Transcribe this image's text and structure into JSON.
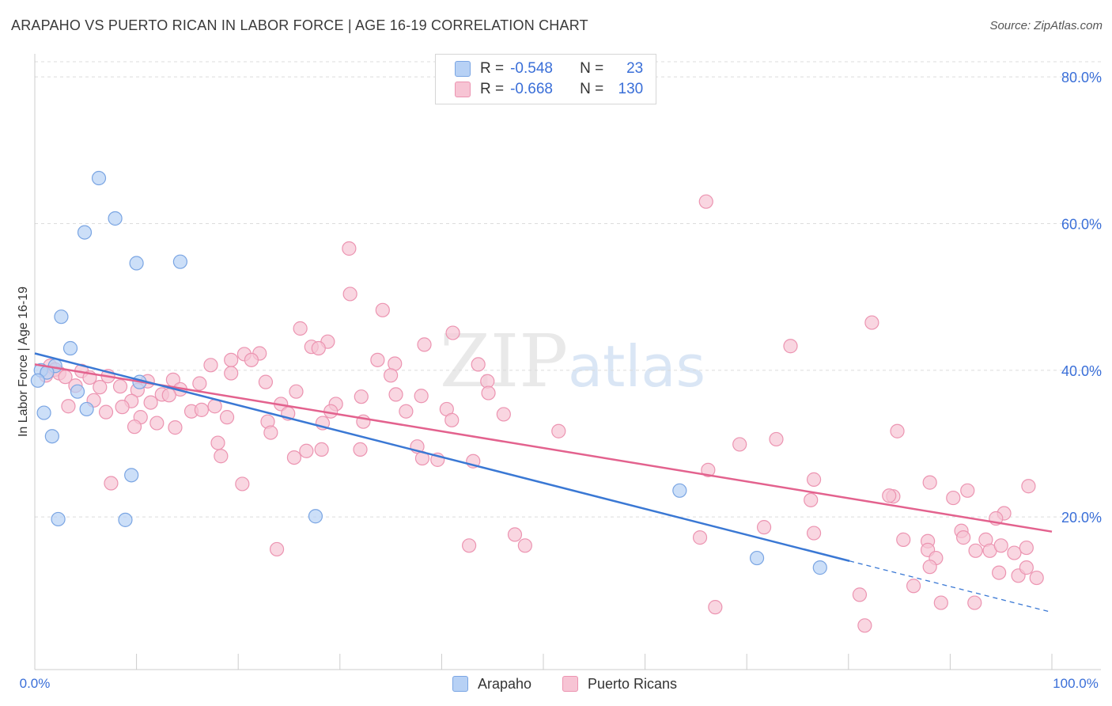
{
  "title": "ARAPAHO VS PUERTO RICAN IN LABOR FORCE | AGE 16-19 CORRELATION CHART",
  "source": "Source: ZipAtlas.com",
  "watermark": {
    "zip": "ZIP",
    "atlas": "atlas"
  },
  "colors": {
    "arapaho_fill": "#b7d1f5",
    "arapaho_stroke": "#7aa5e3",
    "arapaho_line": "#3a78d4",
    "pr_fill": "#f7c4d4",
    "pr_stroke": "#ec94b1",
    "pr_line": "#e3628e",
    "axis_text": "#3a6fd8",
    "grid": "#dcdcdc"
  },
  "legend": {
    "rows": [
      {
        "r_label": "R =",
        "r_value": "-0.548",
        "n_label": "N =",
        "n_value": "23"
      },
      {
        "r_label": "R =",
        "r_value": "-0.668",
        "n_label": "N =",
        "n_value": "130"
      }
    ],
    "bottom": [
      "Arapaho",
      "Puerto Ricans"
    ]
  },
  "chart_data": {
    "type": "scatter",
    "title": "ARAPAHO VS PUERTO RICAN IN LABOR FORCE | AGE 16-19 CORRELATION CHART",
    "xlabel": "",
    "ylabel": "In Labor Force | Age 16-19",
    "xlim": [
      0,
      100
    ],
    "ylim": [
      0,
      80
    ],
    "x_tick_labels": [
      "0.0%",
      "100.0%"
    ],
    "y_ticks": [
      20,
      40,
      60,
      80
    ],
    "y_tick_labels": [
      "20.0%",
      "40.0%",
      "60.0%",
      "80.0%"
    ],
    "series": [
      {
        "name": "Arapaho",
        "r": -0.548,
        "n": 23,
        "points": [
          [
            6.3,
            66.2
          ],
          [
            7.9,
            60.7
          ],
          [
            4.9,
            58.8
          ],
          [
            10.0,
            54.6
          ],
          [
            14.3,
            54.8
          ],
          [
            2.6,
            47.3
          ],
          [
            3.5,
            43.0
          ],
          [
            2.0,
            40.6
          ],
          [
            0.6,
            40.0
          ],
          [
            1.2,
            39.7
          ],
          [
            0.3,
            38.6
          ],
          [
            10.3,
            38.4
          ],
          [
            4.2,
            37.1
          ],
          [
            5.1,
            34.7
          ],
          [
            0.9,
            34.2
          ],
          [
            1.7,
            31.0
          ],
          [
            9.5,
            25.7
          ],
          [
            2.3,
            19.7
          ],
          [
            8.9,
            19.6
          ],
          [
            27.6,
            20.1
          ],
          [
            63.4,
            23.6
          ],
          [
            71.0,
            14.4
          ],
          [
            77.2,
            13.1
          ]
        ],
        "trend": {
          "x0": 0,
          "y0": 42.3,
          "x1": 80.1,
          "y1": 14.0,
          "dash_x1": 100,
          "dash_y1": 7.0
        }
      },
      {
        "name": "Puerto Ricans",
        "r": -0.668,
        "n": 130,
        "points": [
          [
            66.0,
            63.0
          ],
          [
            30.9,
            56.6
          ],
          [
            31.0,
            50.4
          ],
          [
            34.2,
            48.2
          ],
          [
            82.3,
            46.5
          ],
          [
            26.1,
            45.7
          ],
          [
            41.1,
            45.1
          ],
          [
            28.8,
            43.9
          ],
          [
            38.3,
            43.5
          ],
          [
            74.3,
            43.3
          ],
          [
            27.2,
            43.2
          ],
          [
            27.9,
            43.0
          ],
          [
            22.1,
            42.3
          ],
          [
            20.6,
            42.2
          ],
          [
            21.3,
            41.4
          ],
          [
            33.7,
            41.4
          ],
          [
            17.3,
            40.7
          ],
          [
            19.3,
            41.4
          ],
          [
            35.4,
            40.9
          ],
          [
            43.6,
            40.8
          ],
          [
            1.5,
            40.6
          ],
          [
            2.0,
            40.1
          ],
          [
            4.6,
            39.9
          ],
          [
            2.4,
            39.6
          ],
          [
            1.1,
            39.3
          ],
          [
            3.0,
            39.1
          ],
          [
            5.4,
            39.0
          ],
          [
            7.2,
            39.2
          ],
          [
            35.0,
            39.3
          ],
          [
            19.3,
            39.6
          ],
          [
            13.6,
            38.7
          ],
          [
            16.2,
            38.2
          ],
          [
            22.7,
            38.4
          ],
          [
            11.1,
            38.5
          ],
          [
            44.5,
            38.5
          ],
          [
            4.0,
            37.9
          ],
          [
            6.4,
            37.7
          ],
          [
            8.4,
            37.8
          ],
          [
            14.3,
            37.4
          ],
          [
            10.1,
            37.3
          ],
          [
            25.7,
            37.1
          ],
          [
            32.1,
            36.4
          ],
          [
            35.5,
            36.7
          ],
          [
            38.0,
            36.5
          ],
          [
            44.6,
            36.9
          ],
          [
            12.5,
            36.7
          ],
          [
            13.2,
            36.6
          ],
          [
            5.8,
            35.9
          ],
          [
            9.5,
            35.8
          ],
          [
            11.4,
            35.6
          ],
          [
            3.3,
            35.1
          ],
          [
            8.6,
            35.0
          ],
          [
            17.7,
            35.1
          ],
          [
            24.2,
            35.4
          ],
          [
            29.6,
            35.4
          ],
          [
            15.4,
            34.4
          ],
          [
            16.4,
            34.6
          ],
          [
            7.0,
            34.3
          ],
          [
            24.9,
            34.1
          ],
          [
            36.5,
            34.4
          ],
          [
            29.1,
            34.4
          ],
          [
            40.5,
            34.7
          ],
          [
            46.1,
            34.0
          ],
          [
            10.4,
            33.6
          ],
          [
            18.9,
            33.6
          ],
          [
            22.9,
            33.0
          ],
          [
            32.3,
            33.0
          ],
          [
            41.0,
            33.2
          ],
          [
            12.0,
            32.8
          ],
          [
            28.3,
            32.8
          ],
          [
            13.8,
            32.2
          ],
          [
            9.8,
            32.3
          ],
          [
            23.2,
            31.5
          ],
          [
            51.5,
            31.7
          ],
          [
            84.8,
            31.7
          ],
          [
            18.0,
            30.1
          ],
          [
            72.9,
            30.6
          ],
          [
            69.3,
            29.9
          ],
          [
            37.6,
            29.6
          ],
          [
            28.2,
            29.2
          ],
          [
            32.0,
            29.2
          ],
          [
            26.7,
            29.0
          ],
          [
            18.3,
            28.3
          ],
          [
            25.5,
            28.1
          ],
          [
            38.1,
            28.0
          ],
          [
            39.6,
            27.8
          ],
          [
            43.1,
            27.6
          ],
          [
            66.2,
            26.4
          ],
          [
            88.0,
            24.7
          ],
          [
            97.7,
            24.2
          ],
          [
            7.5,
            24.6
          ],
          [
            20.4,
            24.5
          ],
          [
            76.6,
            25.1
          ],
          [
            91.7,
            23.6
          ],
          [
            84.4,
            22.8
          ],
          [
            84.0,
            22.9
          ],
          [
            76.3,
            22.3
          ],
          [
            90.3,
            22.6
          ],
          [
            95.3,
            20.5
          ],
          [
            94.5,
            19.8
          ],
          [
            91.1,
            18.1
          ],
          [
            76.6,
            17.8
          ],
          [
            71.7,
            18.6
          ],
          [
            91.3,
            17.2
          ],
          [
            87.8,
            16.7
          ],
          [
            93.5,
            16.9
          ],
          [
            85.4,
            16.9
          ],
          [
            47.2,
            17.6
          ],
          [
            65.4,
            17.2
          ],
          [
            42.7,
            16.1
          ],
          [
            48.2,
            16.1
          ],
          [
            23.8,
            15.6
          ],
          [
            87.8,
            15.5
          ],
          [
            93.9,
            15.4
          ],
          [
            92.5,
            15.4
          ],
          [
            96.3,
            15.1
          ],
          [
            88.6,
            14.4
          ],
          [
            88.0,
            13.2
          ],
          [
            94.8,
            12.4
          ],
          [
            96.7,
            12.0
          ],
          [
            97.5,
            13.1
          ],
          [
            98.5,
            11.7
          ],
          [
            86.4,
            10.6
          ],
          [
            81.1,
            9.4
          ],
          [
            89.1,
            8.3
          ],
          [
            92.4,
            8.3
          ],
          [
            66.9,
            7.7
          ],
          [
            81.6,
            5.2
          ],
          [
            97.5,
            15.8
          ],
          [
            95.0,
            16.1
          ]
        ],
        "trend": {
          "x0": 0,
          "y0": 40.8,
          "x1": 100,
          "y1": 18.0
        }
      }
    ]
  }
}
